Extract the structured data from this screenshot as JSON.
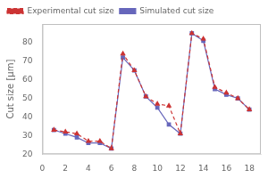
{
  "chart_data": {
    "type": "line",
    "x": [
      1,
      2,
      3,
      4,
      5,
      6,
      7,
      8,
      9,
      10,
      11,
      12,
      13,
      14,
      15,
      16,
      17,
      18
    ],
    "series": [
      {
        "name": "Experimental cut size",
        "color": "#cc3333",
        "marker": "triangle",
        "line_style": "dashed",
        "values": [
          33,
          32,
          31,
          27,
          27,
          23,
          74,
          65,
          51,
          47,
          46,
          31,
          85,
          82,
          56,
          53,
          50,
          44
        ]
      },
      {
        "name": "Simulated cut size",
        "color": "#6666bb",
        "marker": "square",
        "line_style": "solid",
        "values": [
          33,
          31,
          29,
          26,
          26,
          23,
          72,
          65,
          51,
          45,
          36,
          31,
          85,
          81,
          55,
          52,
          50,
          44
        ]
      }
    ],
    "ylabel": "Cut size [µm]",
    "xlim": [
      0,
      19
    ],
    "ylim": [
      20,
      90
    ],
    "xticks": [
      0,
      2,
      4,
      6,
      8,
      10,
      12,
      14,
      16,
      18
    ],
    "yticks": [
      20,
      30,
      40,
      50,
      60,
      70,
      80
    ],
    "grid": false,
    "legend": "upper left"
  }
}
